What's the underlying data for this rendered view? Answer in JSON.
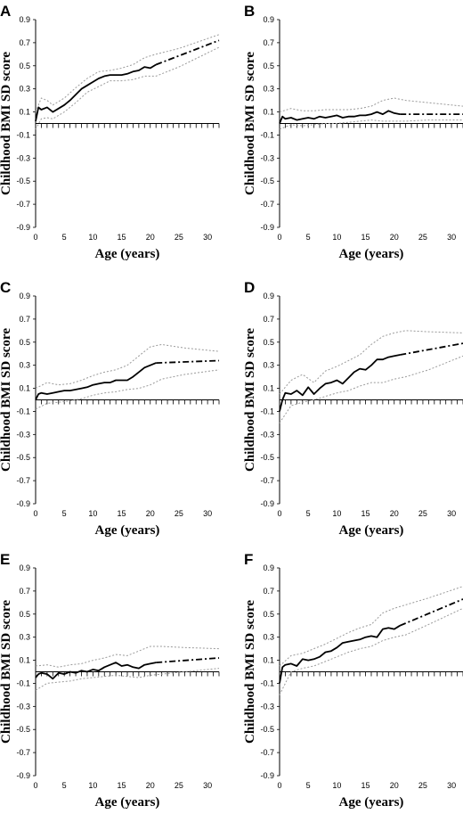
{
  "figure": {
    "axis_titles": {
      "y": "Childhood BMI SD score",
      "x": "Age (years)"
    }
  },
  "chart_data": [
    {
      "panel": "A",
      "type": "line",
      "xlabel": "Age (years)",
      "ylabel": "Childhood BMI SD score",
      "xlim": [
        0,
        32
      ],
      "ylim": [
        -0.9,
        0.9
      ],
      "xticks": [
        "0",
        "5",
        "10",
        "15",
        "20",
        "25",
        "30"
      ],
      "yticks": [
        "-0.9",
        "-0.7",
        "-0.5",
        "-0.3",
        "-0.1",
        "0.1",
        "0.3",
        "0.5",
        "0.7",
        "0.9"
      ],
      "grid": false,
      "series": [
        {
          "role": "estimate",
          "style": "solid",
          "x": [
            0,
            0.5,
            1,
            2,
            3,
            4,
            5,
            6,
            7,
            8,
            9,
            10,
            11,
            12,
            13,
            14,
            15,
            16,
            17,
            18,
            19,
            20,
            21
          ],
          "y": [
            0.02,
            0.14,
            0.12,
            0.14,
            0.1,
            0.13,
            0.16,
            0.2,
            0.25,
            0.3,
            0.33,
            0.36,
            0.39,
            0.41,
            0.42,
            0.42,
            0.42,
            0.43,
            0.45,
            0.46,
            0.49,
            0.48,
            0.51
          ]
        },
        {
          "role": "extrapolation",
          "style": "dash-dot",
          "x": [
            21,
            32
          ],
          "y": [
            0.51,
            0.72
          ]
        },
        {
          "role": "upper-ci",
          "style": "dotted",
          "x": [
            0,
            1,
            2,
            3,
            5,
            7,
            9,
            11,
            13,
            15,
            17,
            19,
            21,
            25,
            32
          ],
          "y": [
            0.1,
            0.22,
            0.2,
            0.16,
            0.22,
            0.31,
            0.39,
            0.45,
            0.46,
            0.48,
            0.51,
            0.57,
            0.6,
            0.65,
            0.77
          ]
        },
        {
          "role": "lower-ci",
          "style": "dotted",
          "x": [
            0,
            1,
            2,
            3,
            5,
            7,
            9,
            11,
            13,
            15,
            17,
            19,
            21,
            25,
            32
          ],
          "y": [
            -0.05,
            0.04,
            0.05,
            0.04,
            0.1,
            0.18,
            0.27,
            0.32,
            0.37,
            0.37,
            0.38,
            0.41,
            0.41,
            0.49,
            0.66
          ]
        }
      ]
    },
    {
      "panel": "B",
      "type": "line",
      "xlabel": "Age (years)",
      "ylabel": "Childhood BMI SD score",
      "xlim": [
        0,
        32
      ],
      "ylim": [
        -0.9,
        0.9
      ],
      "xticks": [
        "0",
        "5",
        "10",
        "15",
        "20",
        "25",
        "30"
      ],
      "yticks": [
        "-0.9",
        "-0.7",
        "-0.5",
        "-0.3",
        "-0.1",
        "0.1",
        "0.3",
        "0.5",
        "0.7",
        "0.9"
      ],
      "grid": false,
      "series": [
        {
          "role": "estimate",
          "style": "solid",
          "x": [
            0,
            0.5,
            1,
            2,
            3,
            4,
            5,
            6,
            7,
            8,
            9,
            10,
            11,
            12,
            13,
            14,
            15,
            16,
            17,
            18,
            19,
            20,
            21
          ],
          "y": [
            0.0,
            0.06,
            0.04,
            0.05,
            0.03,
            0.04,
            0.05,
            0.04,
            0.06,
            0.05,
            0.06,
            0.07,
            0.05,
            0.06,
            0.06,
            0.07,
            0.07,
            0.08,
            0.1,
            0.08,
            0.11,
            0.09,
            0.08
          ]
        },
        {
          "role": "extrapolation",
          "style": "dash-dot",
          "x": [
            21,
            32
          ],
          "y": [
            0.08,
            0.08
          ]
        },
        {
          "role": "upper-ci",
          "style": "dotted",
          "x": [
            0,
            2,
            4,
            6,
            8,
            10,
            12,
            14,
            16,
            18,
            20,
            22,
            26,
            32
          ],
          "y": [
            0.1,
            0.13,
            0.11,
            0.11,
            0.12,
            0.12,
            0.12,
            0.13,
            0.15,
            0.2,
            0.22,
            0.2,
            0.18,
            0.15
          ]
        },
        {
          "role": "lower-ci",
          "style": "dotted",
          "x": [
            0,
            2,
            4,
            6,
            8,
            10,
            12,
            14,
            16,
            18,
            20,
            22,
            26,
            32
          ],
          "y": [
            -0.05,
            -0.01,
            -0.02,
            -0.01,
            0.0,
            0.0,
            0.01,
            0.02,
            0.03,
            0.02,
            0.02,
            0.02,
            0.03,
            0.03
          ]
        }
      ]
    },
    {
      "panel": "C",
      "type": "line",
      "xlabel": "Age (years)",
      "ylabel": "Childhood BMI SD score",
      "xlim": [
        0,
        32
      ],
      "ylim": [
        -0.9,
        0.9
      ],
      "xticks": [
        "0",
        "5",
        "10",
        "15",
        "20",
        "25",
        "30"
      ],
      "yticks": [
        "-0.9",
        "-0.7",
        "-0.5",
        "-0.3",
        "-0.1",
        "0.1",
        "0.3",
        "0.5",
        "0.7",
        "0.9"
      ],
      "grid": false,
      "series": [
        {
          "role": "estimate",
          "style": "solid",
          "x": [
            0,
            0.5,
            1,
            2,
            3,
            4,
            5,
            6,
            7,
            8,
            9,
            10,
            11,
            12,
            13,
            14,
            15,
            16,
            17,
            18,
            19,
            20,
            21
          ],
          "y": [
            0.0,
            0.05,
            0.06,
            0.05,
            0.06,
            0.07,
            0.08,
            0.08,
            0.09,
            0.1,
            0.11,
            0.13,
            0.14,
            0.15,
            0.15,
            0.17,
            0.17,
            0.17,
            0.2,
            0.24,
            0.28,
            0.3,
            0.32
          ]
        },
        {
          "role": "extrapolation",
          "style": "dash-dot",
          "x": [
            21,
            32
          ],
          "y": [
            0.32,
            0.34
          ]
        },
        {
          "role": "upper-ci",
          "style": "dotted",
          "x": [
            0,
            2,
            4,
            6,
            8,
            10,
            12,
            14,
            16,
            18,
            20,
            22,
            26,
            32
          ],
          "y": [
            0.1,
            0.15,
            0.13,
            0.14,
            0.17,
            0.21,
            0.24,
            0.26,
            0.3,
            0.38,
            0.46,
            0.48,
            0.45,
            0.42
          ]
        },
        {
          "role": "lower-ci",
          "style": "dotted",
          "x": [
            0,
            2,
            4,
            6,
            8,
            10,
            12,
            14,
            16,
            18,
            20,
            22,
            26,
            32
          ],
          "y": [
            -0.08,
            -0.03,
            -0.02,
            -0.01,
            0.01,
            0.04,
            0.06,
            0.07,
            0.09,
            0.1,
            0.13,
            0.18,
            0.22,
            0.26
          ]
        }
      ]
    },
    {
      "panel": "D",
      "type": "line",
      "xlabel": "Age (years)",
      "ylabel": "Childhood BMI SD score",
      "xlim": [
        0,
        32
      ],
      "ylim": [
        -0.9,
        0.9
      ],
      "xticks": [
        "0",
        "5",
        "10",
        "15",
        "20",
        "25",
        "30"
      ],
      "yticks": [
        "-0.9",
        "-0.7",
        "-0.5",
        "-0.3",
        "-0.1",
        "0.1",
        "0.3",
        "0.5",
        "0.7",
        "0.9"
      ],
      "grid": false,
      "series": [
        {
          "role": "estimate",
          "style": "solid",
          "x": [
            0,
            0.5,
            1,
            2,
            3,
            4,
            5,
            6,
            7,
            8,
            9,
            10,
            11,
            12,
            13,
            14,
            15,
            16,
            17,
            18,
            19,
            20,
            21
          ],
          "y": [
            -0.1,
            0.0,
            0.06,
            0.05,
            0.08,
            0.04,
            0.11,
            0.05,
            0.1,
            0.14,
            0.15,
            0.17,
            0.14,
            0.19,
            0.24,
            0.27,
            0.26,
            0.3,
            0.35,
            0.35,
            0.37,
            0.38,
            0.39
          ]
        },
        {
          "role": "extrapolation",
          "style": "dash-dot",
          "x": [
            21,
            32
          ],
          "y": [
            0.39,
            0.49
          ]
        },
        {
          "role": "upper-ci",
          "style": "dotted",
          "x": [
            0,
            2,
            4,
            6,
            8,
            10,
            12,
            14,
            16,
            18,
            20,
            22,
            26,
            32
          ],
          "y": [
            0.05,
            0.17,
            0.22,
            0.15,
            0.25,
            0.29,
            0.34,
            0.39,
            0.48,
            0.55,
            0.58,
            0.6,
            0.59,
            0.58
          ]
        },
        {
          "role": "lower-ci",
          "style": "dotted",
          "x": [
            0,
            2,
            4,
            6,
            8,
            10,
            12,
            14,
            16,
            18,
            20,
            22,
            26,
            32
          ],
          "y": [
            -0.2,
            -0.05,
            -0.02,
            0.0,
            0.03,
            0.06,
            0.08,
            0.12,
            0.15,
            0.15,
            0.18,
            0.2,
            0.26,
            0.38
          ]
        }
      ]
    },
    {
      "panel": "E",
      "type": "line",
      "xlabel": "Age (years)",
      "ylabel": "Childhood BMI SD score",
      "xlim": [
        0,
        32
      ],
      "ylim": [
        -0.9,
        0.9
      ],
      "xticks": [
        "0",
        "5",
        "10",
        "15",
        "20",
        "25",
        "30"
      ],
      "yticks": [
        "-0.9",
        "-0.7",
        "-0.5",
        "-0.3",
        "-0.1",
        "0.1",
        "0.3",
        "0.5",
        "0.7",
        "0.9"
      ],
      "grid": false,
      "series": [
        {
          "role": "estimate",
          "style": "solid",
          "x": [
            0,
            0.5,
            1,
            2,
            3,
            4,
            5,
            6,
            7,
            8,
            9,
            10,
            11,
            12,
            13,
            14,
            15,
            16,
            17,
            18,
            19,
            20,
            21
          ],
          "y": [
            -0.05,
            -0.02,
            -0.01,
            -0.02,
            -0.06,
            -0.01,
            -0.02,
            0.0,
            -0.01,
            0.01,
            0.0,
            0.02,
            0.01,
            0.04,
            0.06,
            0.08,
            0.05,
            0.06,
            0.04,
            0.03,
            0.06,
            0.07,
            0.08
          ]
        },
        {
          "role": "extrapolation",
          "style": "dash-dot",
          "x": [
            21,
            32
          ],
          "y": [
            0.08,
            0.12
          ]
        },
        {
          "role": "upper-ci",
          "style": "dotted",
          "x": [
            0,
            2,
            4,
            6,
            8,
            10,
            12,
            14,
            16,
            18,
            20,
            22,
            26,
            32
          ],
          "y": [
            0.05,
            0.06,
            0.04,
            0.06,
            0.07,
            0.1,
            0.12,
            0.15,
            0.14,
            0.18,
            0.22,
            0.22,
            0.21,
            0.2
          ]
        },
        {
          "role": "lower-ci",
          "style": "dotted",
          "x": [
            0,
            2,
            4,
            6,
            8,
            10,
            12,
            14,
            16,
            18,
            20,
            22,
            26,
            32
          ],
          "y": [
            -0.16,
            -0.1,
            -0.09,
            -0.08,
            -0.06,
            -0.05,
            -0.04,
            -0.03,
            -0.04,
            -0.05,
            -0.03,
            -0.02,
            0.0,
            0.03
          ]
        }
      ]
    },
    {
      "panel": "F",
      "type": "line",
      "xlabel": "Age (years)",
      "ylabel": "Childhood BMI SD score",
      "xlim": [
        0,
        32
      ],
      "ylim": [
        -0.9,
        0.9
      ],
      "xticks": [
        "0",
        "5",
        "10",
        "15",
        "20",
        "25",
        "30"
      ],
      "yticks": [
        "-0.9",
        "-0.7",
        "-0.5",
        "-0.3",
        "-0.1",
        "0.1",
        "0.3",
        "0.5",
        "0.7",
        "0.9"
      ],
      "grid": false,
      "series": [
        {
          "role": "estimate",
          "style": "solid",
          "x": [
            0,
            0.5,
            1,
            2,
            3,
            4,
            5,
            6,
            7,
            8,
            9,
            10,
            11,
            12,
            13,
            14,
            15,
            16,
            17,
            18,
            19,
            20,
            21
          ],
          "y": [
            -0.1,
            0.04,
            0.06,
            0.07,
            0.05,
            0.11,
            0.1,
            0.11,
            0.13,
            0.17,
            0.18,
            0.21,
            0.25,
            0.26,
            0.27,
            0.28,
            0.3,
            0.31,
            0.3,
            0.37,
            0.38,
            0.37,
            0.4
          ]
        },
        {
          "role": "extrapolation",
          "style": "dash-dot",
          "x": [
            21,
            32
          ],
          "y": [
            0.4,
            0.63
          ]
        },
        {
          "role": "upper-ci",
          "style": "dotted",
          "x": [
            0,
            2,
            4,
            6,
            8,
            10,
            12,
            14,
            16,
            18,
            20,
            22,
            26,
            32
          ],
          "y": [
            0.05,
            0.14,
            0.16,
            0.2,
            0.24,
            0.29,
            0.34,
            0.38,
            0.41,
            0.51,
            0.55,
            0.58,
            0.64,
            0.74
          ]
        },
        {
          "role": "lower-ci",
          "style": "dotted",
          "x": [
            0,
            2,
            4,
            6,
            8,
            10,
            12,
            14,
            16,
            18,
            20,
            22,
            26,
            32
          ],
          "y": [
            -0.2,
            0.0,
            0.03,
            0.05,
            0.09,
            0.13,
            0.17,
            0.2,
            0.22,
            0.27,
            0.3,
            0.32,
            0.41,
            0.55
          ]
        }
      ]
    }
  ]
}
